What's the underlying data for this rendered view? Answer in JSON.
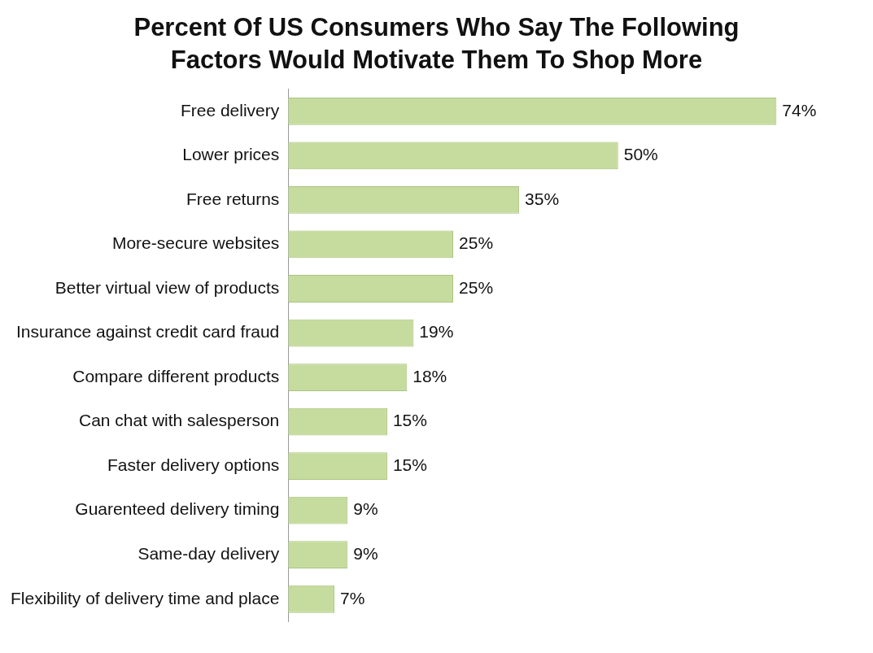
{
  "chart_data": {
    "type": "bar",
    "orientation": "horizontal",
    "title": "Percent Of US Consumers Who Say The Following Factors Would Motivate Them To Shop More",
    "categories": [
      "Free delivery",
      "Lower prices",
      "Free returns",
      "More-secure websites",
      "Better virtual view of products",
      "Insurance against credit card fraud",
      "Compare different products",
      "Can chat with salesperson",
      "Faster delivery options",
      "Guarenteed delivery timing",
      "Same-day delivery",
      "Flexibility of delivery time and place"
    ],
    "values": [
      74,
      50,
      35,
      25,
      25,
      19,
      18,
      15,
      15,
      9,
      9,
      7
    ],
    "value_labels": [
      "74%",
      "50%",
      "35%",
      "25%",
      "25%",
      "19%",
      "18%",
      "15%",
      "15%",
      "9%",
      "9%",
      "7%"
    ],
    "color": "#c6dc9f",
    "legend": false
  }
}
